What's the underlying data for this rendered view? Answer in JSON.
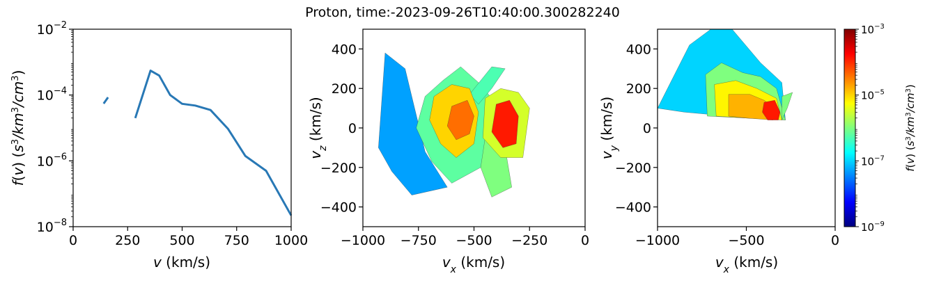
{
  "title": "Proton, time:-2023-09-26T10:40:00.300282240",
  "chart_data": [
    {
      "type": "line",
      "panel": "speed-distribution",
      "yscale": "log",
      "xlabel": "v (km/s)",
      "ylabel": "f(v) (s³/km³/cm³)",
      "xlim": [
        0,
        1000
      ],
      "ylim": [
        1e-08,
        0.01
      ],
      "x_ticks": [
        "0",
        "250",
        "500",
        "750",
        "1000"
      ],
      "y_ticks": [
        {
          "base": "10",
          "exp": "−8",
          "value": 1e-08
        },
        {
          "base": "10",
          "exp": "−6",
          "value": 1e-06
        },
        {
          "base": "10",
          "exp": "−4",
          "value": 0.0001
        },
        {
          "base": "10",
          "exp": "−2",
          "value": 0.01
        }
      ],
      "color": "#2878b5",
      "segments": [
        {
          "x": [
            140,
            160
          ],
          "y": [
            5.5e-05,
            8.5e-05
          ]
        },
        {
          "x": [
            285,
            355,
            395,
            445,
            500,
            560,
            630,
            710,
            790,
            885,
            1000
          ],
          "y": [
            2e-05,
            0.00055,
            0.00039,
            0.0001,
            5.4e-05,
            4.8e-05,
            3.5e-05,
            9.5e-06,
            1.4e-06,
            5e-07,
            2.2e-08
          ]
        }
      ]
    },
    {
      "type": "heatmap",
      "panel": "vx-vz",
      "xlabel": "vx (km/s)",
      "ylabel": "vz (km/s)",
      "xlim": [
        -1000,
        0
      ],
      "ylim": [
        -500,
        500
      ],
      "x_ticks": [
        "−1000",
        "−750",
        "−500",
        "−250",
        "0"
      ],
      "y_ticks": [
        "−400",
        "−200",
        "0",
        "200",
        "400"
      ],
      "regions": [
        {
          "log_f": -7.3,
          "points": [
            [
              -900,
              380
            ],
            [
              -810,
              300
            ],
            [
              -720,
              -120
            ],
            [
              -620,
              -300
            ],
            [
              -780,
              -340
            ],
            [
              -870,
              -220
            ],
            [
              -930,
              -100
            ]
          ]
        },
        {
          "log_f": -6.2,
          "points": [
            [
              -720,
              160
            ],
            [
              -640,
              240
            ],
            [
              -560,
              310
            ],
            [
              -470,
              220
            ],
            [
              -400,
              120
            ],
            [
              -380,
              -50
            ],
            [
              -470,
              -200
            ],
            [
              -600,
              -280
            ],
            [
              -690,
              -170
            ],
            [
              -760,
              0
            ]
          ]
        },
        {
          "log_f": -6.3,
          "points": [
            [
              -520,
              170
            ],
            [
              -420,
              310
            ],
            [
              -360,
              300
            ],
            [
              -420,
              200
            ],
            [
              -480,
              120
            ]
          ]
        },
        {
          "log_f": -5.0,
          "points": [
            [
              -680,
              160
            ],
            [
              -600,
              220
            ],
            [
              -520,
              200
            ],
            [
              -480,
              80
            ],
            [
              -500,
              -80
            ],
            [
              -580,
              -150
            ],
            [
              -650,
              -80
            ],
            [
              -700,
              40
            ]
          ]
        },
        {
          "log_f": -4.4,
          "points": [
            [
              -600,
              110
            ],
            [
              -530,
              140
            ],
            [
              -500,
              60
            ],
            [
              -520,
              -30
            ],
            [
              -580,
              -60
            ],
            [
              -620,
              10
            ]
          ]
        },
        {
          "log_f": -6.0,
          "points": [
            [
              -450,
              -50
            ],
            [
              -360,
              -100
            ],
            [
              -330,
              -300
            ],
            [
              -420,
              -350
            ],
            [
              -470,
              -200
            ]
          ]
        },
        {
          "log_f": -5.5,
          "points": [
            [
              -450,
              150
            ],
            [
              -380,
              200
            ],
            [
              -300,
              180
            ],
            [
              -250,
              100
            ],
            [
              -280,
              -150
            ],
            [
              -380,
              -150
            ],
            [
              -460,
              -50
            ]
          ]
        },
        {
          "log_f": -3.9,
          "points": [
            [
              -400,
              120
            ],
            [
              -340,
              140
            ],
            [
              -300,
              60
            ],
            [
              -310,
              -80
            ],
            [
              -370,
              -100
            ],
            [
              -420,
              -20
            ]
          ]
        }
      ]
    },
    {
      "type": "heatmap",
      "panel": "vx-vy",
      "xlabel": "vx (km/s)",
      "ylabel": "vy (km/s)",
      "xlim": [
        -1000,
        0
      ],
      "ylim": [
        -500,
        500
      ],
      "x_ticks": [
        "−1000",
        "−500",
        "0"
      ],
      "y_ticks": [
        "−400",
        "−200",
        "0",
        "200",
        "400"
      ],
      "regions": [
        {
          "log_f": -7.0,
          "points": [
            [
              -1000,
              100
            ],
            [
              -820,
              420
            ],
            [
              -700,
              500
            ],
            [
              -580,
              500
            ],
            [
              -420,
              330
            ],
            [
              -300,
              230
            ],
            [
              -280,
              40
            ],
            [
              -600,
              60
            ],
            [
              -850,
              80
            ]
          ]
        },
        {
          "log_f": -6.0,
          "points": [
            [
              -730,
              270
            ],
            [
              -640,
              330
            ],
            [
              -520,
              280
            ],
            [
              -420,
              260
            ],
            [
              -330,
              200
            ],
            [
              -280,
              40
            ],
            [
              -500,
              50
            ],
            [
              -720,
              60
            ]
          ]
        },
        {
          "log_f": -5.2,
          "points": [
            [
              -680,
              220
            ],
            [
              -560,
              240
            ],
            [
              -440,
              200
            ],
            [
              -330,
              150
            ],
            [
              -300,
              40
            ],
            [
              -500,
              50
            ],
            [
              -670,
              60
            ]
          ]
        },
        {
          "log_f": -4.8,
          "points": [
            [
              -600,
              170
            ],
            [
              -480,
              170
            ],
            [
              -400,
              140
            ],
            [
              -340,
              100
            ],
            [
              -350,
              40
            ],
            [
              -500,
              50
            ],
            [
              -600,
              60
            ]
          ]
        },
        {
          "log_f": -3.9,
          "points": [
            [
              -400,
              130
            ],
            [
              -340,
              140
            ],
            [
              -310,
              80
            ],
            [
              -320,
              40
            ],
            [
              -380,
              40
            ],
            [
              -410,
              80
            ]
          ]
        },
        {
          "log_f": -6.0,
          "points": [
            [
              -300,
              160
            ],
            [
              -240,
              180
            ],
            [
              -270,
              100
            ],
            [
              -300,
              40
            ]
          ]
        }
      ]
    }
  ],
  "colorbar": {
    "label": "f(v) (s³/km³/cm³)",
    "range_log": [
      -9,
      -3
    ],
    "ticks": [
      {
        "base": "10",
        "exp": "−3",
        "value": -3
      },
      {
        "base": "10",
        "exp": "−5",
        "value": -5
      },
      {
        "base": "10",
        "exp": "−7",
        "value": -7
      },
      {
        "base": "10",
        "exp": "−9",
        "value": -9
      }
    ],
    "colormap": [
      "#00007f",
      "#0000ff",
      "#007fff",
      "#00ffff",
      "#7fff7f",
      "#ffff00",
      "#ff7f00",
      "#ff0000",
      "#7f0000"
    ]
  }
}
